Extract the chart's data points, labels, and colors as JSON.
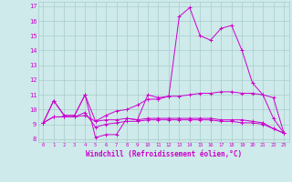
{
  "xlabel": "Windchill (Refroidissement éolien,°C)",
  "bg_color": "#ceeaea",
  "grid_color": "#aacccc",
  "line_color": "#cc00cc",
  "xlim": [
    -0.5,
    23.5
  ],
  "ylim": [
    7.8,
    17.3
  ],
  "xticks": [
    0,
    1,
    2,
    3,
    4,
    5,
    6,
    7,
    8,
    9,
    10,
    11,
    12,
    13,
    14,
    15,
    16,
    17,
    18,
    19,
    20,
    21,
    22,
    23
  ],
  "yticks": [
    8,
    9,
    10,
    11,
    12,
    13,
    14,
    15,
    16,
    17
  ],
  "line1": [
    9.1,
    10.6,
    9.6,
    9.6,
    11.0,
    8.1,
    8.3,
    8.3,
    9.4,
    9.3,
    11.0,
    10.8,
    10.9,
    16.3,
    16.9,
    15.0,
    14.7,
    15.5,
    15.7,
    14.0,
    11.8,
    11.0,
    10.8,
    8.4
  ],
  "line2": [
    9.1,
    10.6,
    9.6,
    9.6,
    11.0,
    9.2,
    9.6,
    9.9,
    10.0,
    10.3,
    10.7,
    10.7,
    10.9,
    10.9,
    11.0,
    11.1,
    11.1,
    11.2,
    11.2,
    11.1,
    11.1,
    11.0,
    9.4,
    8.4
  ],
  "line3": [
    9.1,
    9.5,
    9.5,
    9.5,
    9.6,
    9.2,
    9.3,
    9.3,
    9.4,
    9.3,
    9.4,
    9.4,
    9.4,
    9.4,
    9.4,
    9.4,
    9.4,
    9.3,
    9.3,
    9.3,
    9.2,
    9.1,
    8.7,
    8.4
  ],
  "line4": [
    9.1,
    9.5,
    9.5,
    9.5,
    9.8,
    8.8,
    9.0,
    9.1,
    9.2,
    9.2,
    9.3,
    9.3,
    9.3,
    9.3,
    9.3,
    9.3,
    9.3,
    9.2,
    9.2,
    9.1,
    9.1,
    9.0,
    8.7,
    8.4
  ]
}
